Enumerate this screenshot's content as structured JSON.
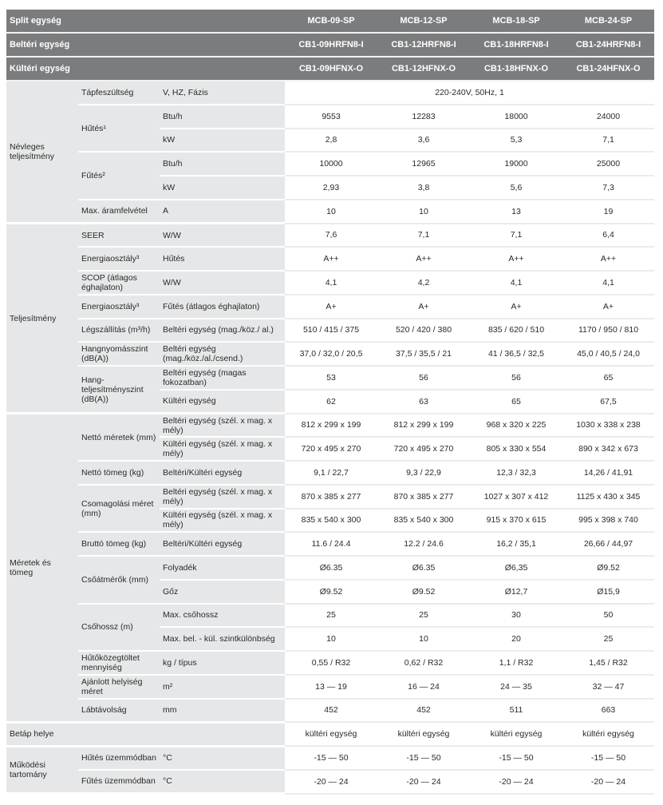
{
  "header": [
    {
      "label": "Split egység",
      "values": [
        "MCB-09-SP",
        "MCB-12-SP",
        "MCB-18-SP",
        "MCB-24-SP"
      ]
    },
    {
      "label": "Beltéri egység",
      "values": [
        "CB1-09HRFN8-I",
        "CB1-12HRFN8-I",
        "CB1-18HRFN8-I",
        "CB1-24HRFN8-I"
      ]
    },
    {
      "label": "Kültéri egység",
      "values": [
        "CB1-09HFNX-O",
        "CB1-12HFNX-O",
        "CB1-18HFNX-O",
        "CB1-24HFNX-O"
      ]
    }
  ],
  "sections": [
    {
      "label": "Névleges teljesítmény",
      "groups": [
        {
          "label": "Tápfeszültség",
          "rows": [
            {
              "unit": "V, HZ, Fázis",
              "span": "220-240V, 50Hz, 1"
            }
          ]
        },
        {
          "label": "Hűtés¹",
          "rows": [
            {
              "unit": "Btu/h",
              "values": [
                "9553",
                "12283",
                "18000",
                "24000"
              ]
            },
            {
              "unit": "kW",
              "values": [
                "2,8",
                "3,6",
                "5,3",
                "7,1"
              ]
            }
          ]
        },
        {
          "label": "Fűtés²",
          "rows": [
            {
              "unit": "Btu/h",
              "values": [
                "10000",
                "12965",
                "19000",
                "25000"
              ]
            },
            {
              "unit": "kW",
              "values": [
                "2,93",
                "3,8",
                "5,6",
                "7,3"
              ]
            }
          ]
        },
        {
          "label": "Max. áramfelvétel",
          "rows": [
            {
              "unit": "A",
              "values": [
                "10",
                "10",
                "13",
                "19"
              ]
            }
          ]
        }
      ]
    },
    {
      "label": "Teljesítmény",
      "groups": [
        {
          "label": "SEER",
          "rows": [
            {
              "unit": "W/W",
              "values": [
                "7,6",
                "7,1",
                "7,1",
                "6,4"
              ]
            }
          ]
        },
        {
          "label": "Energiaosztály³",
          "rows": [
            {
              "unit": "Hűtés",
              "values": [
                "A++",
                "A++",
                "A++",
                "A++"
              ]
            }
          ]
        },
        {
          "label": "SCOP (átlagos éghajlaton)",
          "rows": [
            {
              "unit": "W/W",
              "values": [
                "4,1",
                "4,2",
                "4,1",
                "4,1"
              ]
            }
          ]
        },
        {
          "label": "Energiaosztály³",
          "rows": [
            {
              "unit": "Fűtés (átlagos éghajlaton)",
              "values": [
                "A+",
                "A+",
                "A+",
                "A+"
              ]
            }
          ]
        },
        {
          "label": "Légszállítás (m³/h)",
          "rows": [
            {
              "unit": "Beltéri egység (mag./köz./ al.)",
              "values": [
                "510 / 415 / 375",
                "520 / 420 / 380",
                "835 / 620 / 510",
                "1170 / 950 / 810"
              ]
            }
          ]
        },
        {
          "label": "Hangnyomásszint (dB(A))",
          "rows": [
            {
              "unit": "Beltéri egység (mag./köz./al./csend.)",
              "values": [
                "37,0 / 32,0 / 20,5",
                "37,5 / 35,5 / 21",
                "41 / 36,5 / 32,5",
                "45,0 / 40,5 / 24,0"
              ]
            }
          ]
        },
        {
          "label": "Hang-teljesítményszint (dB(A))",
          "rows": [
            {
              "unit": "Beltéri egység (magas fokozatban)",
              "values": [
                "53",
                "56",
                "56",
                "65"
              ]
            },
            {
              "unit": "Kültéri egység",
              "values": [
                "62",
                "63",
                "65",
                "67,5"
              ]
            }
          ]
        }
      ]
    },
    {
      "label": "Méretek és tömeg",
      "groups": [
        {
          "label": "Nettó méretek (mm)",
          "rows": [
            {
              "unit": "Beltéri egység (szél. x mag. x mély)",
              "values": [
                "812 x 299 x 199",
                "812 x 299 x 199",
                "968 x 320 x 225",
                "1030 x 338 x 238"
              ]
            },
            {
              "unit": "Kültéri egység (szél. x mag. x mély)",
              "values": [
                "720 x 495 x 270",
                "720 x 495 x 270",
                "805 x 330 x 554",
                "890 x 342 x 673"
              ]
            }
          ]
        },
        {
          "label": "Nettó tömeg (kg)",
          "rows": [
            {
              "unit": "Beltéri/Kültéri egység",
              "values": [
                "9,1 / 22,7",
                "9,3 / 22,9",
                "12,3 / 32,3",
                "14,26 / 41,91"
              ]
            }
          ]
        },
        {
          "label": "Csomagolási méret (mm)",
          "rows": [
            {
              "unit": "Beltéri egység (szél. x mag. x mély)",
              "values": [
                "870 x 385 x 277",
                "870 x 385 x 277",
                "1027 x 307 x 412",
                "1125 x 430 x 345"
              ]
            },
            {
              "unit": "Kültéri egység (szél. x mag. x mély)",
              "values": [
                "835 x 540 x 300",
                "835 x 540 x 300",
                "915 x 370 x 615",
                "995 x 398 x 740"
              ]
            }
          ]
        },
        {
          "label": "Bruttó tömeg (kg)",
          "rows": [
            {
              "unit": "Beltéri/Kültéri egység",
              "values": [
                "11.6 / 24.4",
                "12.2 / 24.6",
                "16,2 / 35,1",
                "26,66 / 44,97"
              ]
            }
          ]
        },
        {
          "label": "Csőátmérők (mm)",
          "rows": [
            {
              "unit": "Folyadék",
              "values": [
                "Ø6.35",
                "Ø6.35",
                "Ø6,35",
                "Ø9.52"
              ]
            },
            {
              "unit": "Gőz",
              "values": [
                "Ø9.52",
                "Ø9.52",
                "Ø12,7",
                "Ø15,9"
              ]
            }
          ]
        },
        {
          "label": "Csőhossz (m)",
          "rows": [
            {
              "unit": "Max. csőhossz",
              "values": [
                "25",
                "25",
                "30",
                "50"
              ]
            },
            {
              "unit": "Max. bel. - kül. szintkülönbség",
              "values": [
                "10",
                "10",
                "20",
                "25"
              ]
            }
          ]
        },
        {
          "label": "Hűtőközegtöltet mennyiség",
          "rows": [
            {
              "unit": "kg / típus",
              "values": [
                "0,55 / R32",
                "0,62 / R32",
                "1,1 / R32",
                "1,45 / R32"
              ]
            }
          ]
        },
        {
          "label": "Ajánlott helyiség méret",
          "rows": [
            {
              "unit": "m²",
              "values": [
                "13 — 19",
                "16 — 24",
                "24 — 35",
                "32 — 47"
              ]
            }
          ]
        },
        {
          "label": "Lábtávolság",
          "rows": [
            {
              "unit": "mm",
              "values": [
                "452",
                "452",
                "511",
                "663"
              ]
            }
          ]
        }
      ]
    },
    {
      "label": "Betáp helye",
      "groups": [
        {
          "label": "",
          "rows": [
            {
              "unit": "",
              "values": [
                "kültéri egység",
                "kültéri egység",
                "kültéri egység",
                "kültéri egység"
              ]
            }
          ]
        }
      ]
    },
    {
      "label": "Működési tartomány",
      "groups": [
        {
          "label": "Hűtés üzemmódban",
          "rows": [
            {
              "unit": "°C",
              "values": [
                "-15 — 50",
                "-15 — 50",
                "-15 — 50",
                "-15 — 50"
              ]
            }
          ]
        },
        {
          "label": "Fűtés üzemmódban",
          "rows": [
            {
              "unit": "°C",
              "values": [
                "-20 — 24",
                "-20 — 24",
                "-20 — 24",
                "-20 — 24"
              ]
            }
          ]
        }
      ]
    }
  ]
}
